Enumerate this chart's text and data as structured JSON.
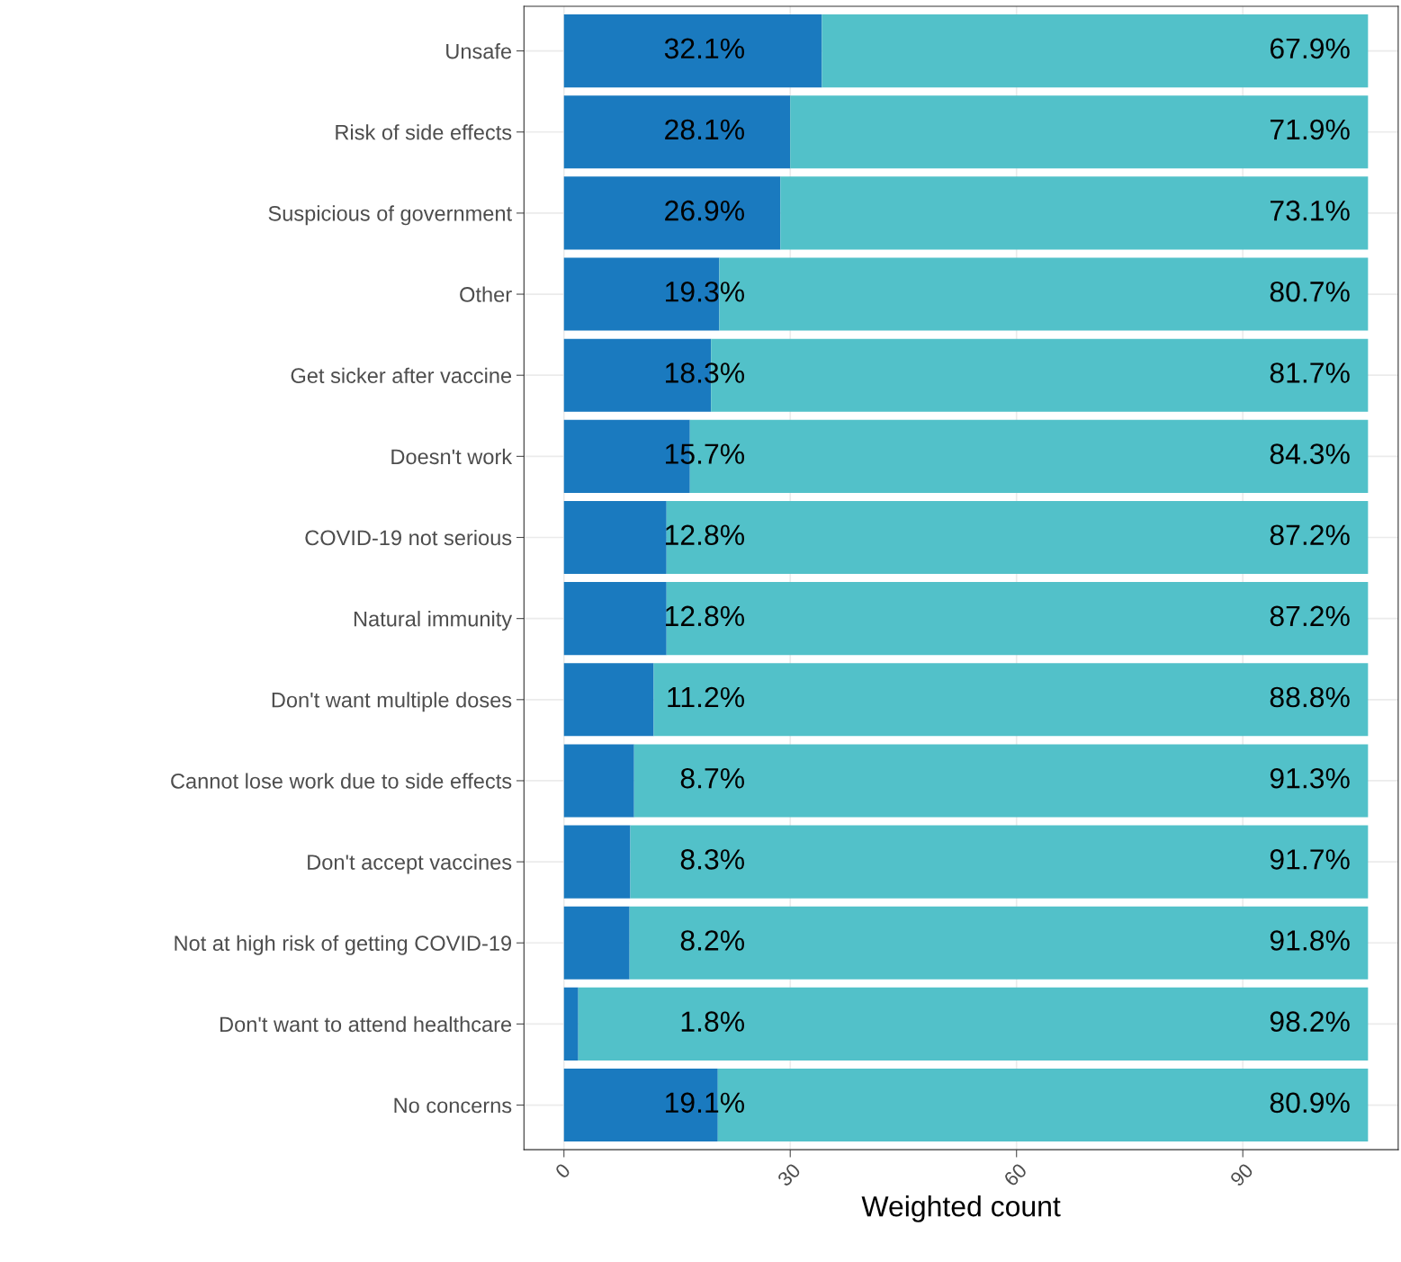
{
  "chart_data": {
    "type": "bar",
    "orientation": "horizontal",
    "stacked": true,
    "xlabel": "Weighted count",
    "categories": [
      "Unsafe",
      "Risk of side effects",
      "Suspicious of government",
      "Other",
      "Get sicker after vaccine",
      "Doesn't work",
      "COVID-19 not serious",
      "Natural immunity",
      "Don't want multiple doses",
      "Cannot lose work due to side effects",
      "Don't accept vaccines",
      "Not at high risk of getting COVID-19",
      "Don't want to attend healthcare",
      "No concerns"
    ],
    "series": [
      {
        "color": "#1a7abf",
        "values": [
          34.2,
          30.0,
          28.7,
          20.6,
          19.5,
          16.7,
          13.6,
          13.6,
          11.9,
          9.3,
          8.8,
          8.7,
          1.9,
          20.4
        ]
      },
      {
        "color": "#52c1c9",
        "values": [
          72.4,
          76.6,
          77.9,
          86.0,
          87.1,
          89.9,
          93.0,
          93.0,
          94.7,
          97.3,
          97.8,
          97.9,
          104.7,
          86.2
        ]
      }
    ],
    "annotations": [
      {
        "text": "32.1%",
        "y": "Unsafe"
      },
      {
        "text": "67.9%",
        "y": "Unsafe"
      },
      {
        "text": "28.1%",
        "y": "Risk of side effects"
      },
      {
        "text": "71.9%",
        "y": "Risk of side effects"
      },
      {
        "text": "26.9%",
        "y": "Suspicious of government"
      },
      {
        "text": "73.1%",
        "y": "Suspicious of government"
      },
      {
        "text": "19.3%",
        "y": "Other"
      },
      {
        "text": "80.7%",
        "y": "Other"
      },
      {
        "text": "18.3%",
        "y": "Get sicker after vaccine"
      },
      {
        "text": "81.7%",
        "y": "Get sicker after vaccine"
      },
      {
        "text": "15.7%",
        "y": "Doesn't work"
      },
      {
        "text": "84.3%",
        "y": "Doesn't work"
      },
      {
        "text": "12.8%",
        "y": "COVID-19 not serious"
      },
      {
        "text": "87.2%",
        "y": "COVID-19 not serious"
      },
      {
        "text": "12.8%",
        "y": "Natural immunity"
      },
      {
        "text": "87.2%",
        "y": "Natural immunity"
      },
      {
        "text": "11.2%",
        "y": "Don't want multiple doses"
      },
      {
        "text": "88.8%",
        "y": "Don't want multiple doses"
      },
      {
        "text": "8.7%",
        "y": "Cannot lose work due to side effects"
      },
      {
        "text": "91.3%",
        "y": "Cannot lose work due to side effects"
      },
      {
        "text": "8.3%",
        "y": "Don't accept vaccines"
      },
      {
        "text": "91.7%",
        "y": "Don't accept vaccines"
      },
      {
        "text": "8.2%",
        "y": "Not at high risk of getting COVID-19"
      },
      {
        "text": "91.8%",
        "y": "Not at high risk of getting COVID-19"
      },
      {
        "text": "1.8%",
        "y": "Don't want to attend healthcare"
      },
      {
        "text": "98.2%",
        "y": "Don't want to attend healthcare"
      },
      {
        "text": "19.1%",
        "y": "No concerns"
      },
      {
        "text": "80.9%",
        "y": "No concerns"
      }
    ],
    "xlim": [
      -5.3,
      110.6
    ],
    "xticks": [
      0,
      30,
      60,
      90
    ],
    "grid": true,
    "legend": false
  }
}
